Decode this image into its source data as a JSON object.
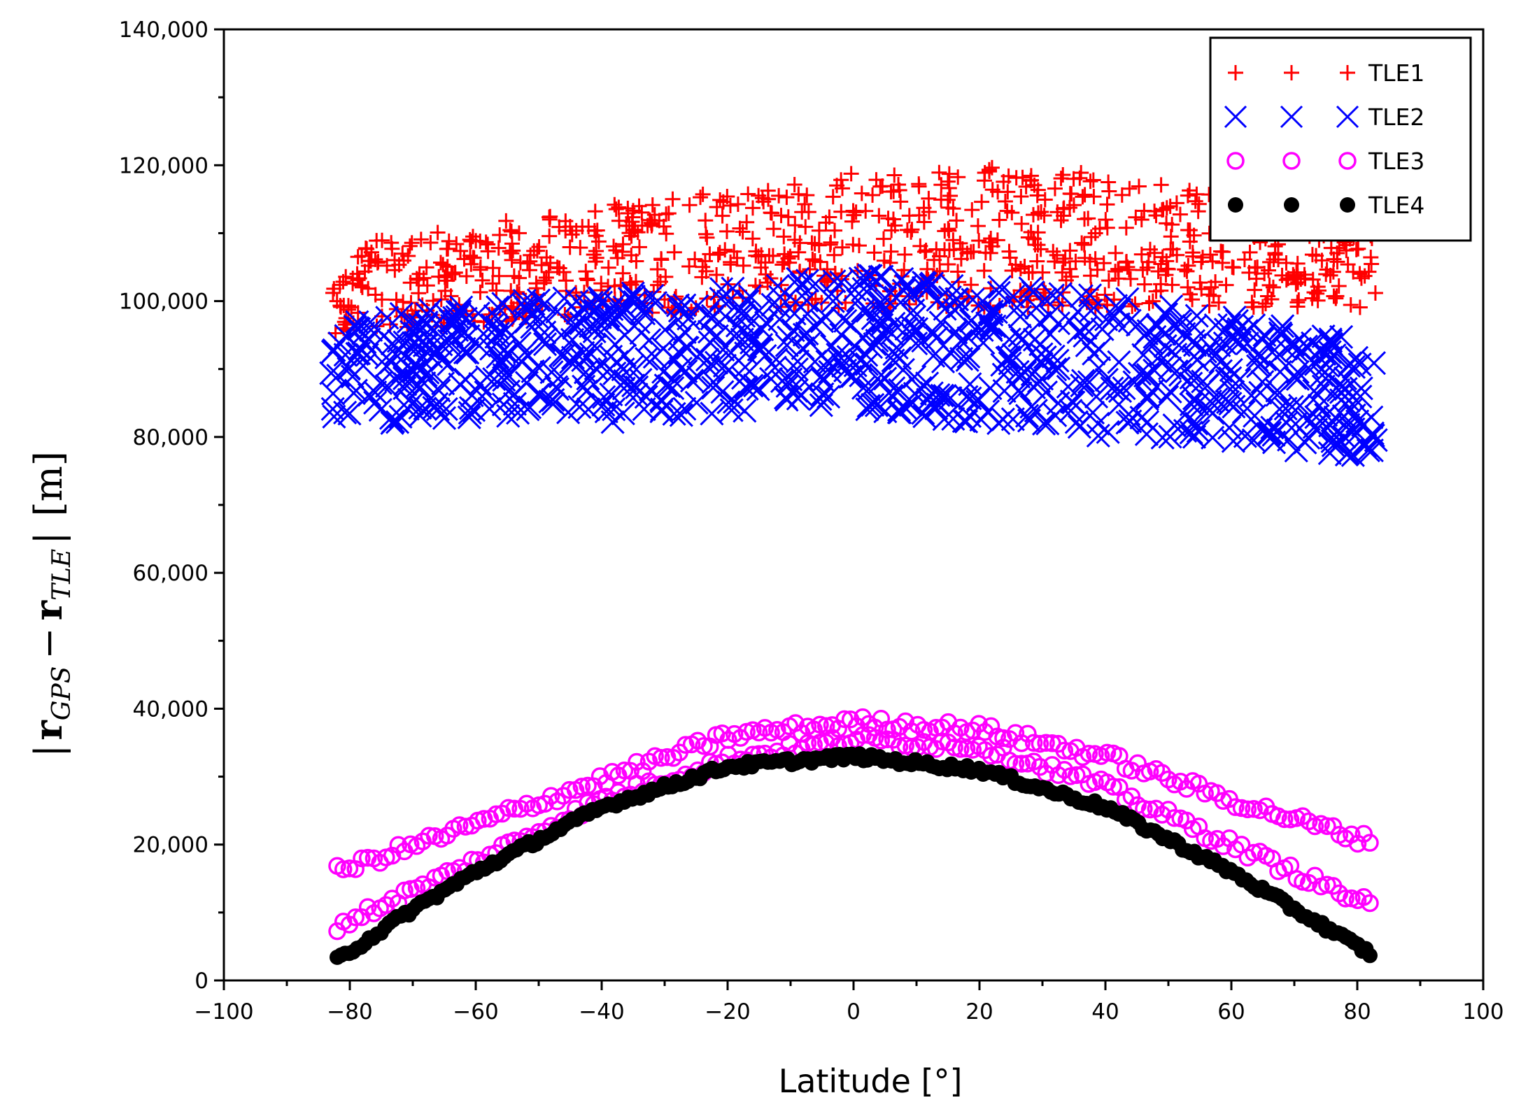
{
  "chart_data": {
    "type": "scatter",
    "xlabel": "Latitude [°]",
    "ylabel": "|r_GPS − r_TLE| [m]",
    "ylabel_parts": {
      "open": "|",
      "r1": "r",
      "sub1": "GPS",
      "minus": "−",
      "r2": "r",
      "sub2": "TLE",
      "close": "|",
      "unit": "[m]"
    },
    "xlim": [
      -100,
      100
    ],
    "ylim": [
      0,
      140000
    ],
    "xticks": [
      -100,
      -80,
      -60,
      -40,
      -20,
      0,
      20,
      40,
      60,
      80,
      100
    ],
    "xtick_labels": [
      "−100",
      "−80",
      "−60",
      "−40",
      "−20",
      "0",
      "20",
      "40",
      "60",
      "80",
      "100"
    ],
    "yticks": [
      0,
      20000,
      40000,
      60000,
      80000,
      100000,
      120000,
      140000
    ],
    "ytick_labels": [
      "0",
      "20,000",
      "40,000",
      "60,000",
      "80,000",
      "100,000",
      "120,000",
      "140,000"
    ],
    "grid": false,
    "legend_position": "top-right",
    "x_range_data": [
      -83,
      83
    ],
    "series": [
      {
        "name": "TLE1",
        "marker": "plus",
        "color": "#ff0000",
        "description": "scattered band",
        "band_min_at_x": [
          [
            -83,
            95000
          ],
          [
            -40,
            98000
          ],
          [
            0,
            99000
          ],
          [
            40,
            99000
          ],
          [
            83,
            99000
          ]
        ],
        "band_max_at_x": [
          [
            -83,
            108000
          ],
          [
            -40,
            114000
          ],
          [
            0,
            119000
          ],
          [
            30,
            120000
          ],
          [
            83,
            112000
          ]
        ]
      },
      {
        "name": "TLE2",
        "marker": "x",
        "color": "#0000ff",
        "description": "scattered band",
        "band_min_at_x": [
          [
            -83,
            82000
          ],
          [
            -40,
            82000
          ],
          [
            0,
            84000
          ],
          [
            40,
            80000
          ],
          [
            83,
            77000
          ]
        ],
        "band_max_at_x": [
          [
            -83,
            98000
          ],
          [
            -40,
            101000
          ],
          [
            0,
            104000
          ],
          [
            40,
            101000
          ],
          [
            83,
            94000
          ]
        ]
      },
      {
        "name": "TLE3",
        "marker": "open-circle",
        "color": "#ff00ff",
        "description": "two arcs",
        "upper_arc": [
          [
            -82,
            16000
          ],
          [
            -60,
            23000
          ],
          [
            -40,
            29500
          ],
          [
            -20,
            36000
          ],
          [
            0,
            38000
          ],
          [
            20,
            37000
          ],
          [
            40,
            33000
          ],
          [
            60,
            26500
          ],
          [
            82,
            20500
          ]
        ],
        "lower_arc": [
          [
            -82,
            8000
          ],
          [
            -60,
            17500
          ],
          [
            -40,
            26500
          ],
          [
            -20,
            32500
          ],
          [
            0,
            35500
          ],
          [
            20,
            34500
          ],
          [
            40,
            28500
          ],
          [
            60,
            20000
          ],
          [
            82,
            11000
          ]
        ]
      },
      {
        "name": "TLE4",
        "marker": "filled-circle",
        "color": "#000000",
        "description": "single arc",
        "arc": [
          [
            -82,
            3000
          ],
          [
            -70,
            10500
          ],
          [
            -60,
            16000
          ],
          [
            -40,
            25500
          ],
          [
            -20,
            31500
          ],
          [
            0,
            33000
          ],
          [
            20,
            31000
          ],
          [
            40,
            25500
          ],
          [
            60,
            16000
          ],
          [
            70,
            10500
          ],
          [
            82,
            4000
          ]
        ]
      }
    ]
  }
}
